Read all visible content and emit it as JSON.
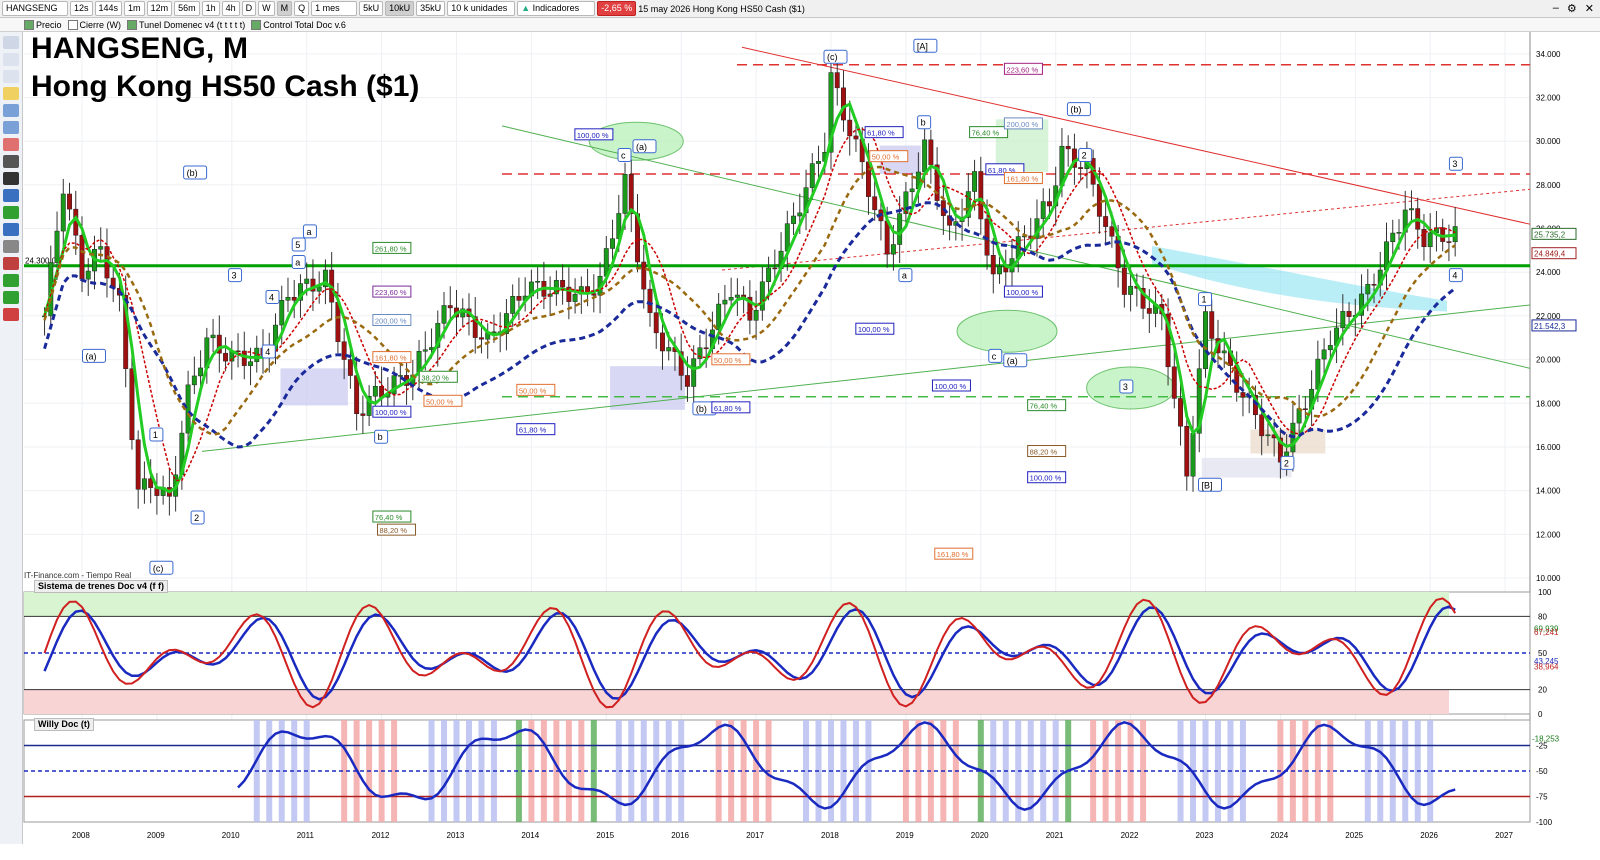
{
  "toolbar": {
    "symbol": "HANGSENG",
    "timeframes": [
      "12s",
      "144s",
      "1m",
      "12m",
      "56m",
      "1h",
      "4h",
      "D",
      "W",
      "M",
      "Q"
    ],
    "selected_timeframe": "M",
    "period": "1 mes",
    "units": [
      "5kU",
      "10kU",
      "35kU"
    ],
    "selected_unit": "10kU",
    "volume_units": "10 k unidades",
    "indicators_label": "Indicadores",
    "change": "-2,65 %",
    "change_color": "#e04040",
    "date_desc": "15 may 2026  Hong Kong HS50 Cash ($1)"
  },
  "toolbar2": {
    "items": [
      "Precio",
      "Cierre (W)",
      "Tunel Domenec v4 (t t t t t)",
      "Control Total Doc v.6"
    ]
  },
  "chart_title": {
    "line1": "HANGSENG, M",
    "line2": "Hong Kong HS50 Cash ($1)"
  },
  "source_label": "IT-Finance.com - Tiempo Real",
  "chart_data": [
    {
      "type": "candlestick",
      "title": "HANGSENG, M",
      "subtitle": "Hong Kong HS50 Cash ($1)",
      "x_tick_labels": [
        "2008",
        "2009",
        "2010",
        "2011",
        "2012",
        "2013",
        "2014",
        "2015",
        "2016",
        "2017",
        "2018",
        "2019",
        "2020",
        "2021",
        "2022",
        "2023",
        "2024",
        "2025",
        "2026",
        "2027"
      ],
      "y_tick_labels": [
        "10.000",
        "12.000",
        "14.000",
        "16.000",
        "18.000",
        "20.000",
        "22.000",
        "24.000",
        "26.000",
        "28.000",
        "30.000",
        "32.000",
        "34.000"
      ],
      "ylim": [
        10000,
        35000
      ],
      "price_labels": [
        "25.735,2",
        "24.849,4",
        "21.542,3"
      ],
      "left_level_label": "24.300,0",
      "closes": [
        {
          "x": "2007-07",
          "v": 22000
        },
        {
          "x": "2007-10",
          "v": 28000
        },
        {
          "x": "2008-01",
          "v": 24000
        },
        {
          "x": "2008-04",
          "v": 25000
        },
        {
          "x": "2008-07",
          "v": 22500
        },
        {
          "x": "2008-10",
          "v": 13900
        },
        {
          "x": "2008-12",
          "v": 14400
        },
        {
          "x": "2009-03",
          "v": 13500
        },
        {
          "x": "2009-06",
          "v": 18400
        },
        {
          "x": "2009-09",
          "v": 20900
        },
        {
          "x": "2010-01",
          "v": 20100
        },
        {
          "x": "2010-06",
          "v": 20100
        },
        {
          "x": "2010-10",
          "v": 23000
        },
        {
          "x": "2011-04",
          "v": 23700
        },
        {
          "x": "2011-09",
          "v": 17600
        },
        {
          "x": "2011-12",
          "v": 18400
        },
        {
          "x": "2012-06",
          "v": 19400
        },
        {
          "x": "2012-12",
          "v": 22600
        },
        {
          "x": "2013-06",
          "v": 20800
        },
        {
          "x": "2013-12",
          "v": 23300
        },
        {
          "x": "2014-06",
          "v": 23200
        },
        {
          "x": "2014-09",
          "v": 22900
        },
        {
          "x": "2014-12",
          "v": 23600
        },
        {
          "x": "2015-04",
          "v": 28100
        },
        {
          "x": "2015-08",
          "v": 21700
        },
        {
          "x": "2016-02",
          "v": 19100
        },
        {
          "x": "2016-09",
          "v": 23300
        },
        {
          "x": "2016-12",
          "v": 22000
        },
        {
          "x": "2017-06",
          "v": 25800
        },
        {
          "x": "2017-12",
          "v": 29900
        },
        {
          "x": "2018-01",
          "v": 32900
        },
        {
          "x": "2018-06",
          "v": 28900
        },
        {
          "x": "2018-10",
          "v": 24900
        },
        {
          "x": "2019-04",
          "v": 29700
        },
        {
          "x": "2019-08",
          "v": 25700
        },
        {
          "x": "2019-12",
          "v": 28200
        },
        {
          "x": "2020-03",
          "v": 23600
        },
        {
          "x": "2020-12",
          "v": 27200
        },
        {
          "x": "2021-02",
          "v": 29500
        },
        {
          "x": "2021-06",
          "v": 28800
        },
        {
          "x": "2021-12",
          "v": 23400
        },
        {
          "x": "2022-06",
          "v": 21900
        },
        {
          "x": "2022-10",
          "v": 14700
        },
        {
          "x": "2023-01",
          "v": 21800
        },
        {
          "x": "2023-06",
          "v": 18900
        },
        {
          "x": "2024-01",
          "v": 15500
        },
        {
          "x": "2024-05",
          "v": 18100
        },
        {
          "x": "2024-09",
          "v": 21100
        },
        {
          "x": "2025-03",
          "v": 23100
        },
        {
          "x": "2025-09",
          "v": 26900
        },
        {
          "x": "2025-12",
          "v": 25600
        },
        {
          "x": "2026-05",
          "v": 25735
        }
      ],
      "horizontal_levels": [
        {
          "value": 24300,
          "color": "#00a000",
          "style": "solid",
          "label": "24.300,0"
        },
        {
          "value": 18300,
          "color": "#44bb44",
          "style": "dashed"
        },
        {
          "value": 33500,
          "color": "#e03030",
          "style": "dashed"
        },
        {
          "value": 28500,
          "color": "#e03030",
          "style": "dashed"
        }
      ],
      "wave_labels": [
        "[A]",
        "(c)",
        "(a)",
        "c",
        "(b)",
        "a",
        "(a)",
        "c",
        "(b)",
        "2",
        "b",
        "a",
        "3",
        "4",
        "1",
        "2",
        "3",
        "4",
        "[B]",
        "(c)",
        "(b)",
        "(a)",
        "b",
        "a",
        "5",
        "1",
        "2",
        "3",
        "4"
      ],
      "fib_labels": [
        "100,00 %",
        "261,80 %",
        "223,60 %",
        "200,00 %",
        "161,80 %",
        "100,00 %",
        "38,20 %",
        "50,00 %",
        "50,00 %",
        "61,80 %",
        "50,00 %",
        "61,80 %",
        "76,40 %",
        "61,80 %",
        "61,80 %",
        "50,00 %",
        "100,00 %",
        "100,00 %",
        "223,60 %",
        "200,00 %",
        "161,80 %",
        "100,00 %",
        "76,40 %",
        "88,20 %",
        "100,00 %",
        "161,80 %",
        "76,40 %",
        "88,20 %"
      ]
    },
    {
      "type": "line",
      "title": "Sistema de trenes Doc v4 (f f)",
      "ylim": [
        0,
        100
      ],
      "y_tick_labels": [
        "100",
        "80",
        "50",
        "20",
        "0"
      ],
      "value_labels": [
        "69,939",
        "67,241",
        "43,245",
        "38,964"
      ],
      "levels": [
        80,
        50,
        20
      ]
    },
    {
      "type": "line",
      "title": "Willy Doc (t)",
      "ylim": [
        -100,
        0
      ],
      "y_tick_labels": [
        "-25",
        "-50",
        "-75",
        "-100"
      ],
      "value_labels": [
        "-18,253"
      ],
      "levels": [
        -25,
        -50,
        -75
      ]
    }
  ],
  "colors": {
    "bull_candle": "#1a9a1a",
    "bear_candle": "#a01010",
    "fast_ma": "#22cc22",
    "slow_ma": "#cc0000",
    "blue_ma": "#1a2a9a",
    "brown_ma": "#9a6a10",
    "resistance": "#e03030"
  }
}
